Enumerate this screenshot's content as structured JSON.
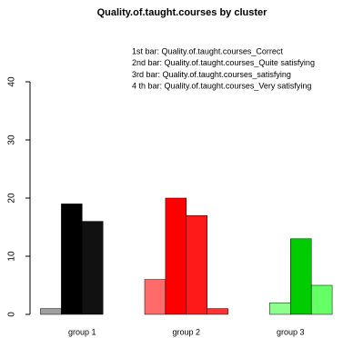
{
  "chart_data": {
    "type": "bar",
    "title": "Quality.of.taught.courses by cluster",
    "categories": [
      "group 1",
      "group 2",
      "group 3"
    ],
    "series": [
      {
        "name": "1st bar: Quality.of.taught.courses_Correct",
        "colors": [
          "#a0a0a0",
          "#ff6b6b",
          "#9aff9a"
        ],
        "values": [
          1,
          6,
          0
        ]
      },
      {
        "name": "2nd bar: Quality.of.taught.courses_Quite satisfying",
        "colors": [
          "#000000",
          "#ff0000",
          "#8cff8c"
        ],
        "values": [
          19,
          20,
          2
        ]
      },
      {
        "name": "3rd bar: Quality.of.taught.courses_satisfying",
        "colors": [
          "#111111",
          "#ff1a1a",
          "#00cc00"
        ],
        "values": [
          16,
          17,
          13
        ]
      },
      {
        "name": "4 th bar: Quality.of.taught.courses_Very satisfying",
        "colors": [
          "#222222",
          "#ff3333",
          "#66ff66"
        ],
        "values": [
          0,
          1,
          5
        ]
      }
    ],
    "ylim": [
      0,
      40
    ],
    "yticks": [
      0,
      10,
      20,
      30,
      40
    ]
  }
}
